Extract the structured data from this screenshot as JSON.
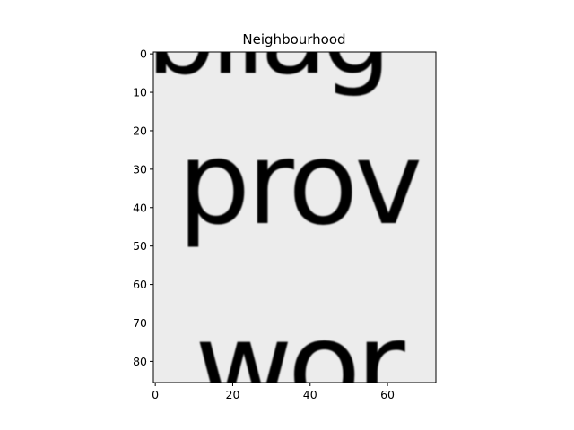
{
  "chart_data": {
    "type": "image",
    "title": "Neighbourhood",
    "xlabel": "",
    "ylabel": "",
    "xlim": [
      -0.5,
      72.5
    ],
    "ylim": [
      85.5,
      -0.5
    ],
    "x_ticks": [
      0,
      20,
      40,
      60
    ],
    "y_ticks": [
      0,
      10,
      20,
      30,
      40,
      50,
      60,
      70,
      80
    ],
    "grid": false,
    "image_content": "grayscale crop of printed serif text showing word fragments",
    "word_fragments": [
      {
        "text": "bliag",
        "row": 5
      },
      {
        "text": "prov",
        "row": 44
      },
      {
        "text": "wor",
        "row": 92
      }
    ],
    "colors": {
      "background": "#ececec",
      "ink": "#141414",
      "axes": "#000000"
    }
  }
}
